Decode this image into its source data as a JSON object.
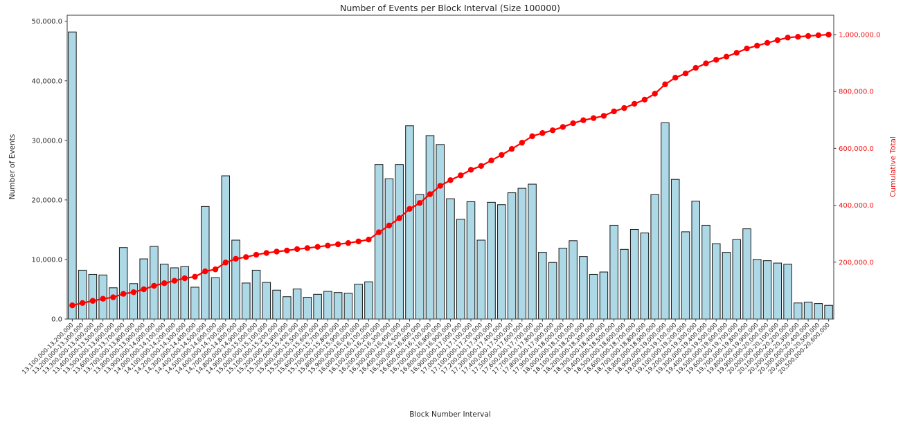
{
  "chart_data": {
    "type": "bar+line combo (bars on left axis, cumulative line on right axis)",
    "title": "Number of Events per Block Interval (Size 100000)",
    "xlabel": "Block Number Interval",
    "ylabel_left": "Number of Events",
    "ylabel_right": "Cumulative Total",
    "grid": false,
    "legend": "none",
    "categories": [
      "13,100,000-13,200,000",
      "13,200,000-13,300,000",
      "13,300,000-13,400,000",
      "13,400,000-13,500,000",
      "13,500,000-13,600,000",
      "13,600,000-13,700,000",
      "13,700,000-13,800,000",
      "13,800,000-13,900,000",
      "13,900,000-14,000,000",
      "14,000,000-14,100,000",
      "14,100,000-14,200,000",
      "14,200,000-14,300,000",
      "14,300,000-14,400,000",
      "14,400,000-14,500,000",
      "14,500,000-14,600,000",
      "14,600,000-14,700,000",
      "14,700,000-14,800,000",
      "14,800,000-14,900,000",
      "14,900,000-15,000,000",
      "15,000,000-15,100,000",
      "15,100,000-15,200,000",
      "15,200,000-15,300,000",
      "15,300,000-15,400,000",
      "15,400,000-15,500,000",
      "15,500,000-15,600,000",
      "15,600,000-15,700,000",
      "15,700,000-15,800,000",
      "15,800,000-15,900,000",
      "15,900,000-16,000,000",
      "16,000,000-16,100,000",
      "16,100,000-16,200,000",
      "16,200,000-16,300,000",
      "16,300,000-16,400,000",
      "16,400,000-16,500,000",
      "16,500,000-16,600,000",
      "16,600,000-16,700,000",
      "16,700,000-16,800,000",
      "16,800,000-16,900,000",
      "16,900,000-17,000,000",
      "17,000,000-17,100,000",
      "17,100,000-17,200,000",
      "17,200,000-17,300,000",
      "17,300,000-17,400,000",
      "17,400,000-17,500,000",
      "17,500,000-17,600,000",
      "17,600,000-17,700,000",
      "17,700,000-17,800,000",
      "17,800,000-17,900,000",
      "17,900,000-18,000,000",
      "18,000,000-18,100,000",
      "18,100,000-18,200,000",
      "18,200,000-18,300,000",
      "18,300,000-18,400,000",
      "18,400,000-18,500,000",
      "18,500,000-18,600,000",
      "18,600,000-18,700,000",
      "18,700,000-18,800,000",
      "18,800,000-18,900,000",
      "18,900,000-19,000,000",
      "19,000,000-19,100,000",
      "19,100,000-19,200,000",
      "19,200,000-19,300,000",
      "19,300,000-19,400,000",
      "19,400,000-19,500,000",
      "19,500,000-19,600,000",
      "19,600,000-19,700,000",
      "19,700,000-19,800,000",
      "19,800,000-19,900,000",
      "19,900,000-20,000,000",
      "20,000,000-20,100,000",
      "20,100,000-20,200,000",
      "20,200,000-20,300,000",
      "20,300,000-20,400,000",
      "20,400,000-20,500,000",
      "20,500,000-20,600,000"
    ],
    "series": [
      {
        "name": "Number of Events",
        "type": "bar",
        "axis": "left",
        "color": "#add8e6",
        "values": [
          48200,
          8200,
          7500,
          7400,
          5250,
          12000,
          5950,
          10100,
          12200,
          9200,
          8600,
          8800,
          5350,
          18900,
          6950,
          24050,
          13250,
          6050,
          8200,
          6150,
          4850,
          3750,
          5050,
          3650,
          4150,
          4650,
          4450,
          4350,
          5850,
          6250,
          25950,
          23550,
          25950,
          32450,
          20900,
          30800,
          29300,
          20200,
          16750,
          19700,
          13250,
          19600,
          19200,
          21200,
          21950,
          22650,
          11200,
          9500,
          11900,
          13150,
          10500,
          7500,
          7900,
          15750,
          11700,
          15050,
          14450,
          20900,
          32950,
          23450,
          14650,
          19800,
          15750,
          12650,
          11200,
          13350,
          15150,
          10000,
          9800,
          9400,
          9200,
          2700,
          2850,
          2600,
          2300
        ]
      },
      {
        "name": "Cumulative Total",
        "type": "line",
        "axis": "right",
        "color": "#ff0000",
        "marker": "circle",
        "values": [
          48200,
          56400,
          63900,
          71300,
          76550,
          88550,
          94500,
          104600,
          116800,
          126000,
          134600,
          143400,
          148750,
          167650,
          174600,
          198650,
          211900,
          217950,
          226150,
          232300,
          237150,
          240900,
          245950,
          249600,
          253750,
          258400,
          262850,
          267200,
          273050,
          279300,
          305250,
          328800,
          354750,
          387200,
          408100,
          438900,
          468200,
          488400,
          505150,
          524850,
          538100,
          557700,
          576900,
          598100,
          620050,
          642700,
          653900,
          663400,
          675300,
          688450,
          698950,
          706450,
          714350,
          730100,
          741800,
          756850,
          771300,
          792200,
          825150,
          848600,
          863250,
          883050,
          898800,
          911450,
          922650,
          936000,
          951150,
          961150,
          970950,
          980350,
          989550,
          992250,
          995100,
          997700,
          1000000
        ]
      }
    ],
    "y_left": {
      "ticks": [
        0,
        10000,
        20000,
        30000,
        40000,
        50000
      ],
      "tick_labels": [
        "0.0",
        "10,000.0",
        "20,000.0",
        "30,000.0",
        "40,000.0",
        "50,000.0"
      ],
      "range": [
        0,
        51000
      ]
    },
    "y_right": {
      "ticks": [
        200000,
        400000,
        600000,
        800000,
        1000000
      ],
      "tick_labels": [
        "200,000.0",
        "400,000.0",
        "600,000.0",
        "800,000.0",
        "1,000,000.0"
      ],
      "range": [
        0,
        1068000
      ]
    }
  },
  "colors": {
    "bar_fill": "#add8e6",
    "bar_edge": "#151515",
    "line": "#ff0000",
    "right_axis_text": "#f01515",
    "text": "#262626",
    "spine": "#3a3a3a",
    "background": "#ffffff"
  }
}
